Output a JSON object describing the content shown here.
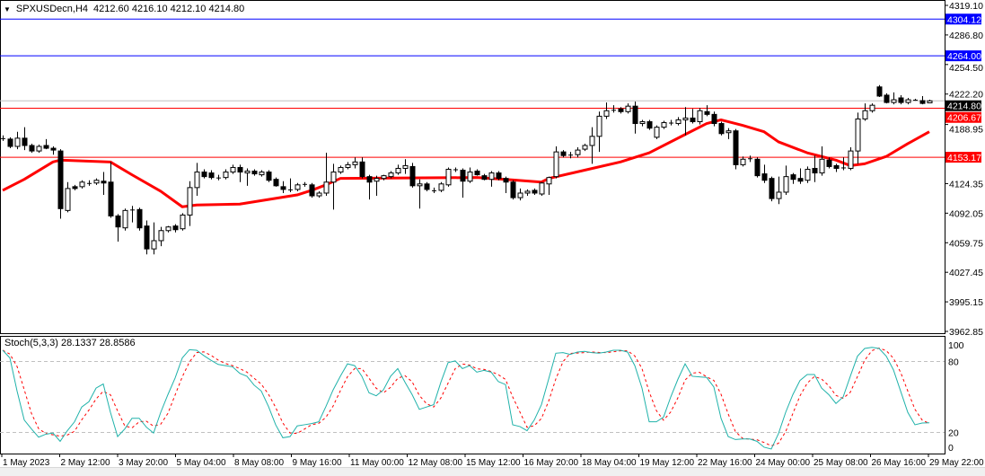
{
  "header": {
    "symbol_label": "SPXUSDecn,H4",
    "ohlc": "4212.60 4216.10 4212.10 4214.80",
    "menu_icon": "triangle-down-icon"
  },
  "chart_data": [
    {
      "type": "candlestick",
      "symbol": "SPXUSDecn",
      "timeframe": "H4",
      "ylim": [
        3962.85,
        4319.1
      ],
      "grid": false,
      "bull_color": "#ffffff",
      "bear_color": "#000000",
      "y_tick_labels": [
        "4319.10",
        "4286.80",
        "4254.50",
        "4222.20",
        "4188.95",
        "4124.35",
        "4092.05",
        "4059.75",
        "4027.45",
        "3995.15",
        "3962.85"
      ],
      "x_tick_labels": [
        "1 May 2023",
        "2 May 12:00",
        "3 May 20:00",
        "5 May 04:00",
        "8 May 08:00",
        "9 May 16:00",
        "11 May 00:00",
        "12 May 08:00",
        "15 May 12:00",
        "16 May 20:00",
        "18 May 04:00",
        "19 May 12:00",
        "22 May 16:00",
        "24 May 00:00",
        "25 May 08:00",
        "26 May 16:00",
        "29 May 22:00"
      ],
      "candles": [
        [
          4174,
          4177,
          4171,
          4173
        ],
        [
          4173,
          4175,
          4163,
          4165
        ],
        [
          4165,
          4181,
          4162,
          4174
        ],
        [
          4174,
          4186,
          4161,
          4166
        ],
        [
          4166,
          4168,
          4158,
          4160
        ],
        [
          4160,
          4167,
          4158,
          4165
        ],
        [
          4166,
          4173,
          4162,
          4163
        ],
        [
          4163,
          4165,
          4156,
          4161
        ],
        [
          4160,
          4162,
          4086,
          4097
        ],
        [
          4095,
          4126,
          4093,
          4119
        ],
        [
          4121,
          4123,
          4117,
          4119
        ],
        [
          4121,
          4128,
          4119,
          4126
        ],
        [
          4125,
          4128,
          4122,
          4124
        ],
        [
          4125,
          4130,
          4123,
          4128
        ],
        [
          4127,
          4137,
          4112,
          4125
        ],
        [
          4126,
          4148,
          4087,
          4089
        ],
        [
          4089,
          4091,
          4061,
          4077
        ],
        [
          4076,
          4097,
          4073,
          4095
        ],
        [
          4096,
          4100,
          4082,
          4095
        ],
        [
          4096,
          4098,
          4073,
          4076
        ],
        [
          4078,
          4084,
          4047,
          4053
        ],
        [
          4053,
          4082,
          4047,
          4062
        ],
        [
          4062,
          4077,
          4056,
          4073
        ],
        [
          4073,
          4078,
          4071,
          4077
        ],
        [
          4078,
          4080,
          4071,
          4074
        ],
        [
          4075,
          4092,
          4073,
          4090
        ],
        [
          4090,
          4127,
          4078,
          4120
        ],
        [
          4120,
          4147,
          4111,
          4137
        ],
        [
          4137,
          4140,
          4130,
          4132
        ],
        [
          4136,
          4139,
          4129,
          4131
        ],
        [
          4131,
          4134,
          4128,
          4131
        ],
        [
          4131,
          4140,
          4129,
          4137
        ],
        [
          4137,
          4145,
          4135,
          4142
        ],
        [
          4142,
          4145,
          4126,
          4137
        ],
        [
          4136,
          4141,
          4122,
          4138
        ],
        [
          4138,
          4140,
          4133,
          4135
        ],
        [
          4134,
          4139,
          4132,
          4137
        ],
        [
          4137,
          4139,
          4126,
          4128
        ],
        [
          4129,
          4131,
          4121,
          4122
        ],
        [
          4121,
          4127,
          4114,
          4118
        ],
        [
          4118,
          4130,
          4115,
          4118
        ],
        [
          4118,
          4125,
          4116,
          4123
        ],
        [
          4123,
          4126,
          4121,
          4124
        ],
        [
          4123,
          4125,
          4109,
          4111
        ],
        [
          4111,
          4116,
          4109,
          4114
        ],
        [
          4114,
          4158,
          4111,
          4126
        ],
        [
          4126,
          4146,
          4096,
          4137
        ],
        [
          4137,
          4144,
          4135,
          4142
        ],
        [
          4142,
          4148,
          4140,
          4145
        ],
        [
          4145,
          4153,
          4141,
          4148
        ],
        [
          4148,
          4153,
          4130,
          4132
        ],
        [
          4132,
          4134,
          4107,
          4126
        ],
        [
          4127,
          4133,
          4111,
          4130
        ],
        [
          4130,
          4134,
          4128,
          4133
        ],
        [
          4132,
          4138,
          4130,
          4136
        ],
        [
          4136,
          4145,
          4134,
          4141
        ],
        [
          4141,
          4151,
          4135,
          4144
        ],
        [
          4143,
          4147,
          4120,
          4122
        ],
        [
          4122,
          4129,
          4097,
          4124
        ],
        [
          4124,
          4126,
          4116,
          4118
        ],
        [
          4117,
          4120,
          4114,
          4117
        ],
        [
          4117,
          4126,
          4115,
          4124
        ],
        [
          4123,
          4142,
          4121,
          4140
        ],
        [
          4140,
          4142,
          4137,
          4140
        ],
        [
          4139,
          4141,
          4109,
          4127
        ],
        [
          4127,
          4142,
          4125,
          4137
        ],
        [
          4138,
          4140,
          4133,
          4134
        ],
        [
          4133,
          4135,
          4128,
          4129
        ],
        [
          4129,
          4138,
          4121,
          4136
        ],
        [
          4136,
          4138,
          4128,
          4130
        ],
        [
          4130,
          4132,
          4114,
          4126
        ],
        [
          4126,
          4128,
          4107,
          4109
        ],
        [
          4109,
          4119,
          4106,
          4114
        ],
        [
          4114,
          4118,
          4111,
          4116
        ],
        [
          4117,
          4119,
          4112,
          4114
        ],
        [
          4113,
          4126,
          4111,
          4125
        ],
        [
          4124,
          4132,
          4112,
          4131
        ],
        [
          4132,
          4165,
          4130,
          4159
        ],
        [
          4159,
          4161,
          4153,
          4155
        ],
        [
          4156,
          4159,
          4152,
          4156
        ],
        [
          4156,
          4164,
          4153,
          4161
        ],
        [
          4162,
          4168,
          4160,
          4166
        ],
        [
          4166,
          4186,
          4146,
          4176
        ],
        [
          4176,
          4203,
          4159,
          4198
        ],
        [
          4198,
          4213,
          4195,
          4204
        ],
        [
          4205,
          4210,
          4202,
          4205
        ],
        [
          4206,
          4208,
          4201,
          4203
        ],
        [
          4203,
          4212,
          4201,
          4209
        ],
        [
          4209,
          4214,
          4179,
          4190
        ],
        [
          4190,
          4194,
          4187,
          4192
        ],
        [
          4192,
          4194,
          4183,
          4185
        ],
        [
          4175,
          4188,
          4173,
          4186
        ],
        [
          4186,
          4193,
          4184,
          4191
        ],
        [
          4191,
          4194,
          4188,
          4191
        ],
        [
          4190,
          4197,
          4188,
          4194
        ],
        [
          4194,
          4208,
          4177,
          4196
        ],
        [
          4196,
          4206,
          4190,
          4192
        ],
        [
          4192,
          4207,
          4189,
          4204
        ],
        [
          4203,
          4210,
          4198,
          4200
        ],
        [
          4200,
          4203,
          4187,
          4190
        ],
        [
          4190,
          4192,
          4177,
          4179
        ],
        [
          4180,
          4185,
          4173,
          4182
        ],
        [
          4182,
          4184,
          4140,
          4145
        ],
        [
          4145,
          4154,
          4143,
          4151
        ],
        [
          4152,
          4155,
          4148,
          4151
        ],
        [
          4151,
          4153,
          4131,
          4133
        ],
        [
          4135,
          4145,
          4125,
          4128
        ],
        [
          4130,
          4132,
          4105,
          4108
        ],
        [
          4108,
          4132,
          4102,
          4115
        ],
        [
          4115,
          4144,
          4112,
          4132
        ],
        [
          4134,
          4136,
          4124,
          4129
        ],
        [
          4130,
          4141,
          4124,
          4127
        ],
        [
          4128,
          4143,
          4125,
          4140
        ],
        [
          4141,
          4155,
          4126,
          4136
        ],
        [
          4136,
          4165,
          4133,
          4151
        ],
        [
          4150,
          4153,
          4141,
          4143
        ],
        [
          4144,
          4146,
          4137,
          4141
        ],
        [
          4142,
          4153,
          4139,
          4142
        ],
        [
          4141,
          4164,
          4139,
          4160
        ],
        [
          4160,
          4202,
          4146,
          4195
        ],
        [
          4195,
          4212,
          4193,
          4204
        ],
        [
          4204,
          4212,
          4202,
          4210
        ],
        [
          4230,
          4232,
          4219,
          4220
        ],
        [
          4221,
          4223,
          4212,
          4213
        ],
        [
          4213,
          4224,
          4211,
          4216
        ],
        [
          4218,
          4221,
          4211,
          4213
        ],
        [
          4213,
          4218,
          4211,
          4216
        ],
        [
          4216,
          4217,
          4215,
          4216
        ],
        [
          4215,
          4220,
          4211,
          4212
        ],
        [
          4212.6,
          4216.1,
          4212.1,
          4214.8
        ]
      ],
      "moving_average": {
        "color": "#ff0000",
        "points": [
          [
            0,
            4117
          ],
          [
            3,
            4129
          ],
          [
            7,
            4148
          ],
          [
            8,
            4150
          ],
          [
            15,
            4148
          ],
          [
            18,
            4134
          ],
          [
            22,
            4116
          ],
          [
            25,
            4099
          ],
          [
            27,
            4101
          ],
          [
            33,
            4102
          ],
          [
            37,
            4107
          ],
          [
            41,
            4112
          ],
          [
            43,
            4117
          ],
          [
            45,
            4123
          ],
          [
            47,
            4130
          ],
          [
            66,
            4131
          ],
          [
            70,
            4129
          ],
          [
            75,
            4126
          ],
          [
            76,
            4130
          ],
          [
            81,
            4139
          ],
          [
            86,
            4148
          ],
          [
            90,
            4158
          ],
          [
            95,
            4178
          ],
          [
            98,
            4190
          ],
          [
            100,
            4194
          ],
          [
            103,
            4188
          ],
          [
            106,
            4181
          ],
          [
            108,
            4170
          ],
          [
            112,
            4158
          ],
          [
            116,
            4150
          ],
          [
            118,
            4144
          ],
          [
            120,
            4146
          ],
          [
            123,
            4154
          ],
          [
            126,
            4168
          ],
          [
            129,
            4181
          ]
        ]
      },
      "levels": [
        {
          "value": "4304.12",
          "color": "#0000ff"
        },
        {
          "value": "4264.00",
          "color": "#0000ff"
        },
        {
          "value": "4206.67",
          "color": "#ff0000"
        },
        {
          "value": "4153.17",
          "color": "#ff0000"
        }
      ],
      "current_price": {
        "value": "4214.80",
        "line_color": "#c0c0c0",
        "label_bg": "#000000"
      }
    },
    {
      "type": "line",
      "title": "Stoch(5,3,3) 28.1337 28.8586",
      "ylim": [
        0,
        100
      ],
      "y_tick_labels": [
        "100",
        "80",
        "20",
        "0"
      ],
      "levels": [
        80,
        20
      ],
      "main_color": "#20b2aa",
      "signal_color": "#ff0000",
      "main_values": [
        89.5,
        83,
        55,
        30.5,
        23,
        16,
        18.5,
        19.5,
        12.5,
        21.5,
        29,
        41.5,
        46,
        57.5,
        61,
        37,
        16.5,
        23,
        32,
        32,
        24.5,
        19.5,
        37,
        52,
        66,
        83,
        90,
        89.5,
        85,
        81,
        77.5,
        76.5,
        75.5,
        70,
        67.5,
        60,
        55,
        42,
        26.5,
        15.5,
        16.5,
        25.5,
        26.5,
        27.5,
        29,
        42,
        56,
        67.5,
        78,
        76.5,
        67.5,
        53.5,
        51,
        56,
        67.5,
        74,
        62.5,
        52,
        39.5,
        41.5,
        43.5,
        62.5,
        79,
        80.5,
        74,
        76.5,
        71,
        72.5,
        71,
        63,
        60.5,
        26.5,
        25,
        21.5,
        30.5,
        43.5,
        65,
        87,
        87.5,
        86,
        88,
        88.5,
        87.5,
        87,
        88,
        89.5,
        89.5,
        88,
        76.5,
        57.5,
        29,
        29,
        33,
        50,
        65,
        78,
        67.5,
        67,
        66.5,
        58.5,
        32,
        16.5,
        14,
        14.5,
        14.5,
        12.5,
        7.5,
        6,
        19,
        37,
        52,
        64,
        69,
        69,
        57.5,
        52,
        44.5,
        50,
        67.5,
        84.5,
        91,
        92,
        91,
        84.5,
        73,
        55,
        37,
        26.5,
        28,
        28.13
      ]
    }
  ]
}
